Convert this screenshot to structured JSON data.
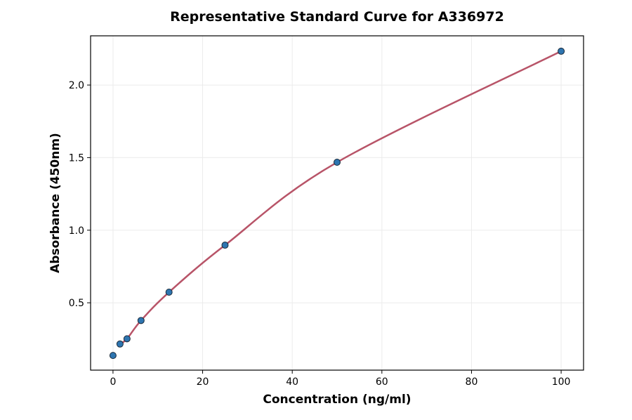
{
  "chart_data": {
    "type": "scatter",
    "title": "Representative Standard Curve for A336972",
    "xlabel": "Concentration (ng/ml)",
    "ylabel": "Absorbance (450nm)",
    "xlim": [
      -5,
      105
    ],
    "ylim": [
      0.036,
      2.339
    ],
    "xticks": [
      0,
      20,
      40,
      60,
      80,
      100
    ],
    "yticks": [
      0.5,
      1.0,
      1.5,
      2.0
    ],
    "ytick_labels": [
      "0.5",
      "1.0",
      "1.5",
      "2.0"
    ],
    "grid": true,
    "points": {
      "x": [
        0,
        1.5625,
        3.125,
        6.25,
        12.5,
        25,
        50,
        100
      ],
      "y": [
        0.137,
        0.216,
        0.252,
        0.378,
        0.573,
        0.897,
        1.468,
        2.233
      ]
    },
    "fit_curve": {
      "x_start": 1.5625,
      "x_end": 100
    },
    "colors": {
      "points": "#2e75b0",
      "point_edge": "#1a2a3a",
      "curve": "#b85468",
      "grid": "#ebebeb"
    }
  }
}
